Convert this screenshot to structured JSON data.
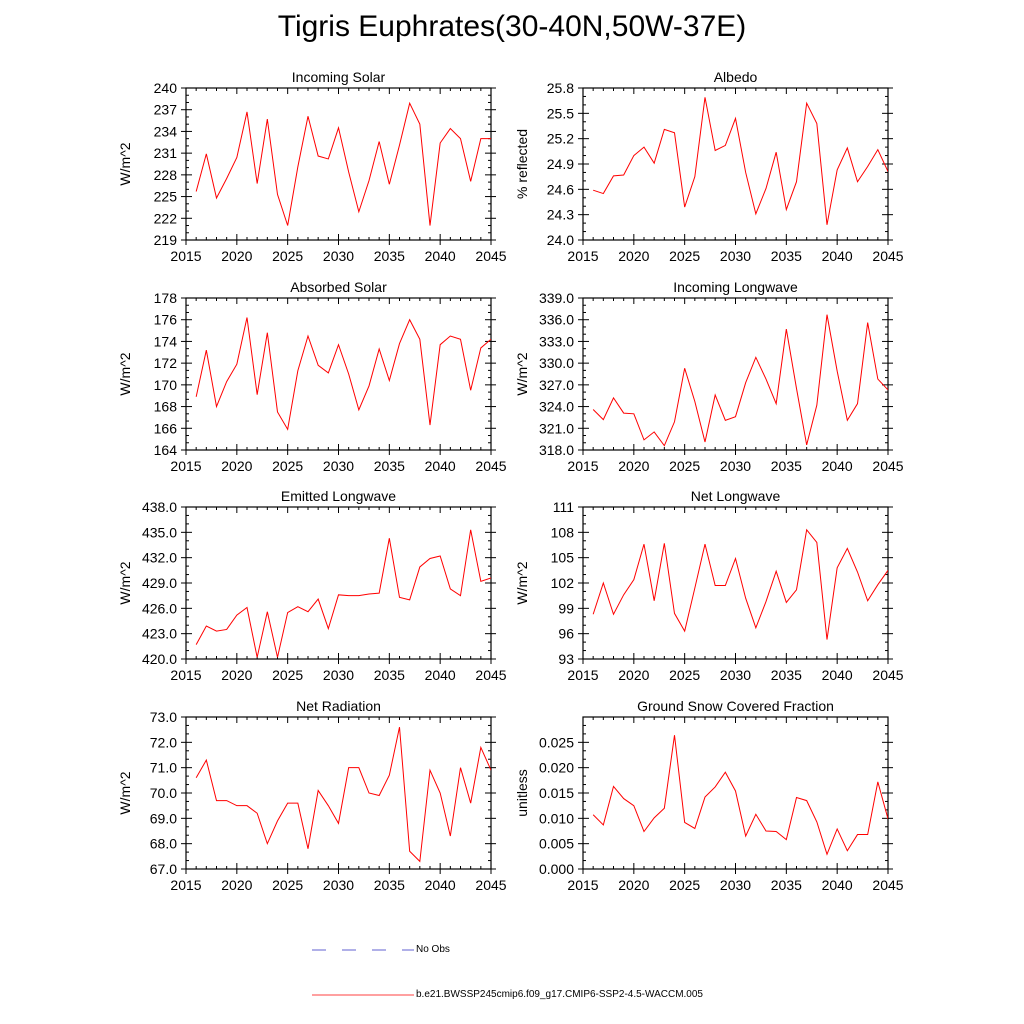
{
  "figure_title": "Tigris Euphrates(30-40N,50W-37E)",
  "legend": [
    {
      "label": "No Obs",
      "color": "#6060d0",
      "dash": true
    },
    {
      "label": "b.e21.BWSSP245cmip6.f09_g17.CMIP6-SSP2-4.5-WACCM.005",
      "color": "#ff4040",
      "dash": false
    }
  ],
  "chart_data": [
    {
      "type": "line",
      "title": "Incoming Solar",
      "ylabel": "W/m^2",
      "xlim": [
        2015,
        2045
      ],
      "xticks": [
        2015,
        2020,
        2025,
        2030,
        2035,
        2040,
        2045
      ],
      "ylim": [
        219,
        240
      ],
      "yticks": [
        219,
        222,
        225,
        228,
        231,
        234,
        237,
        240
      ],
      "ydec": 0,
      "x": [
        2016,
        2017,
        2018,
        2019,
        2020,
        2021,
        2022,
        2023,
        2024,
        2025,
        2026,
        2027,
        2028,
        2029,
        2030,
        2031,
        2032,
        2033,
        2034,
        2035,
        2036,
        2037,
        2038,
        2039,
        2040,
        2041,
        2042,
        2043,
        2044,
        2045
      ],
      "values": [
        225.7,
        230.9,
        224.8,
        227.5,
        230.4,
        236.7,
        226.8,
        235.7,
        225.3,
        221.0,
        229.1,
        236.1,
        230.6,
        230.2,
        234.5,
        228.4,
        222.9,
        227.2,
        232.6,
        226.7,
        232.1,
        237.9,
        235.0,
        221.0,
        232.4,
        234.4,
        233.0,
        227.1,
        233.0,
        233.0
      ],
      "color": "#ff0000"
    },
    {
      "type": "line",
      "title": "Albedo",
      "ylabel": "% reflected",
      "xlim": [
        2015,
        2045
      ],
      "xticks": [
        2015,
        2020,
        2025,
        2030,
        2035,
        2040,
        2045
      ],
      "ylim": [
        24.0,
        25.8
      ],
      "yticks": [
        24.0,
        24.3,
        24.6,
        24.9,
        25.2,
        25.5,
        25.8
      ],
      "ydec": 1,
      "x": [
        2016,
        2017,
        2018,
        2019,
        2020,
        2021,
        2022,
        2023,
        2024,
        2025,
        2026,
        2027,
        2028,
        2029,
        2030,
        2031,
        2032,
        2033,
        2034,
        2035,
        2036,
        2037,
        2038,
        2039,
        2040,
        2041,
        2042,
        2043,
        2044,
        2045
      ],
      "values": [
        24.59,
        24.55,
        24.76,
        24.77,
        25.0,
        25.1,
        24.91,
        25.31,
        25.27,
        24.39,
        24.75,
        25.69,
        25.06,
        25.12,
        25.44,
        24.8,
        24.31,
        24.61,
        25.04,
        24.36,
        24.69,
        25.62,
        25.38,
        24.18,
        24.83,
        25.09,
        24.69,
        24.87,
        25.07,
        24.81
      ],
      "color": "#ff0000"
    },
    {
      "type": "line",
      "title": "Absorbed Solar",
      "ylabel": "W/m^2",
      "xlim": [
        2015,
        2045
      ],
      "xticks": [
        2015,
        2020,
        2025,
        2030,
        2035,
        2040,
        2045
      ],
      "ylim": [
        164,
        178
      ],
      "yticks": [
        164,
        166,
        168,
        170,
        172,
        174,
        176,
        178
      ],
      "ydec": 0,
      "x": [
        2016,
        2017,
        2018,
        2019,
        2020,
        2021,
        2022,
        2023,
        2024,
        2025,
        2026,
        2027,
        2028,
        2029,
        2030,
        2031,
        2032,
        2033,
        2034,
        2035,
        2036,
        2037,
        2038,
        2039,
        2040,
        2041,
        2042,
        2043,
        2044,
        2045
      ],
      "values": [
        168.9,
        173.2,
        168.0,
        170.3,
        171.9,
        176.2,
        169.1,
        174.8,
        167.5,
        165.9,
        171.3,
        174.5,
        171.8,
        171.1,
        173.7,
        171.0,
        167.7,
        169.9,
        173.3,
        170.4,
        173.8,
        176.0,
        174.2,
        166.3,
        173.7,
        174.5,
        174.2,
        169.5,
        173.4,
        174.2
      ],
      "color": "#ff0000"
    },
    {
      "type": "line",
      "title": "Incoming Longwave",
      "ylabel": "W/m^2",
      "xlim": [
        2015,
        2045
      ],
      "xticks": [
        2015,
        2020,
        2025,
        2030,
        2035,
        2040,
        2045
      ],
      "ylim": [
        318.0,
        339.0
      ],
      "yticks": [
        318.0,
        321.0,
        324.0,
        327.0,
        330.0,
        333.0,
        336.0,
        339.0
      ],
      "ydec": 1,
      "x": [
        2016,
        2017,
        2018,
        2019,
        2020,
        2021,
        2022,
        2023,
        2024,
        2025,
        2026,
        2027,
        2028,
        2029,
        2030,
        2031,
        2032,
        2033,
        2034,
        2035,
        2036,
        2037,
        2038,
        2039,
        2040,
        2041,
        2042,
        2043,
        2044,
        2045
      ],
      "values": [
        323.6,
        322.2,
        325.2,
        323.1,
        323.0,
        319.4,
        320.5,
        318.6,
        321.9,
        329.3,
        324.7,
        319.1,
        325.6,
        322.1,
        322.6,
        327.3,
        330.8,
        327.8,
        324.4,
        334.7,
        326.5,
        318.7,
        324.2,
        336.7,
        328.9,
        322.1,
        324.4,
        335.6,
        327.8,
        326.3
      ],
      "color": "#ff0000"
    },
    {
      "type": "line",
      "title": "Emitted Longwave",
      "ylabel": "W/m^2",
      "xlim": [
        2015,
        2045
      ],
      "xticks": [
        2015,
        2020,
        2025,
        2030,
        2035,
        2040,
        2045
      ],
      "ylim": [
        420.0,
        438.0
      ],
      "yticks": [
        420.0,
        423.0,
        426.0,
        429.0,
        432.0,
        435.0,
        438.0
      ],
      "ydec": 1,
      "x": [
        2016,
        2017,
        2018,
        2019,
        2020,
        2021,
        2022,
        2023,
        2024,
        2025,
        2026,
        2027,
        2028,
        2029,
        2030,
        2031,
        2032,
        2033,
        2034,
        2035,
        2036,
        2037,
        2038,
        2039,
        2040,
        2041,
        2042,
        2043,
        2044,
        2045
      ],
      "values": [
        421.7,
        423.9,
        423.3,
        423.5,
        425.2,
        426.1,
        420.2,
        425.6,
        420.2,
        425.5,
        426.2,
        425.6,
        427.1,
        423.6,
        427.6,
        427.5,
        427.5,
        427.7,
        427.8,
        434.3,
        427.3,
        427.0,
        430.9,
        431.9,
        432.2,
        428.3,
        427.5,
        435.3,
        429.2,
        429.6
      ],
      "color": "#ff0000"
    },
    {
      "type": "line",
      "title": "Net Longwave",
      "ylabel": "W/m^2",
      "xlim": [
        2015,
        2045
      ],
      "xticks": [
        2015,
        2020,
        2025,
        2030,
        2035,
        2040,
        2045
      ],
      "ylim": [
        93,
        111
      ],
      "yticks": [
        93,
        96,
        99,
        102,
        105,
        108,
        111
      ],
      "ydec": 0,
      "x": [
        2016,
        2017,
        2018,
        2019,
        2020,
        2021,
        2022,
        2023,
        2024,
        2025,
        2026,
        2027,
        2028,
        2029,
        2030,
        2031,
        2032,
        2033,
        2034,
        2035,
        2036,
        2037,
        2038,
        2039,
        2040,
        2041,
        2042,
        2043,
        2044,
        2045
      ],
      "values": [
        98.3,
        102.0,
        98.3,
        100.6,
        102.4,
        106.6,
        99.9,
        106.7,
        98.4,
        96.3,
        101.4,
        106.6,
        101.7,
        101.7,
        104.9,
        100.2,
        96.7,
        99.8,
        103.4,
        99.7,
        101.2,
        108.3,
        106.8,
        95.3,
        103.8,
        106.1,
        103.3,
        99.9,
        101.8,
        103.5
      ],
      "color": "#ff0000"
    },
    {
      "type": "line",
      "title": "Net Radiation",
      "ylabel": "W/m^2",
      "xlim": [
        2015,
        2045
      ],
      "xticks": [
        2015,
        2020,
        2025,
        2030,
        2035,
        2040,
        2045
      ],
      "ylim": [
        67.0,
        73.0
      ],
      "yticks": [
        67.0,
        68.0,
        69.0,
        70.0,
        71.0,
        72.0,
        73.0
      ],
      "ydec": 1,
      "x": [
        2016,
        2017,
        2018,
        2019,
        2020,
        2021,
        2022,
        2023,
        2024,
        2025,
        2026,
        2027,
        2028,
        2029,
        2030,
        2031,
        2032,
        2033,
        2034,
        2035,
        2036,
        2037,
        2038,
        2039,
        2040,
        2041,
        2042,
        2043,
        2044,
        2045
      ],
      "values": [
        70.6,
        71.3,
        69.7,
        69.7,
        69.5,
        69.5,
        69.2,
        68.0,
        68.9,
        69.6,
        69.6,
        67.8,
        70.1,
        69.5,
        68.8,
        71.0,
        71.0,
        70.0,
        69.9,
        70.7,
        72.6,
        67.7,
        67.3,
        70.9,
        70.0,
        68.3,
        71.0,
        69.6,
        71.8,
        70.9
      ],
      "color": "#ff0000"
    },
    {
      "type": "line",
      "title": "Ground Snow Covered Fraction",
      "ylabel": "unitless",
      "xlim": [
        2015,
        2045
      ],
      "xticks": [
        2015,
        2020,
        2025,
        2030,
        2035,
        2040,
        2045
      ],
      "ylim": [
        0.0,
        0.03
      ],
      "yticks": [
        0.0,
        0.005,
        0.01,
        0.015,
        0.02,
        0.025
      ],
      "ydec": 3,
      "x": [
        2016,
        2017,
        2018,
        2019,
        2020,
        2021,
        2022,
        2023,
        2024,
        2025,
        2026,
        2027,
        2028,
        2029,
        2030,
        2031,
        2032,
        2033,
        2034,
        2035,
        2036,
        2037,
        2038,
        2039,
        2040,
        2041,
        2042,
        2043,
        2044,
        2045
      ],
      "values": [
        0.0107,
        0.0087,
        0.0163,
        0.0139,
        0.0125,
        0.0074,
        0.0101,
        0.012,
        0.0264,
        0.0092,
        0.008,
        0.0142,
        0.0162,
        0.0191,
        0.0154,
        0.0065,
        0.0108,
        0.0075,
        0.0074,
        0.0058,
        0.0141,
        0.0135,
        0.0093,
        0.0029,
        0.0079,
        0.0036,
        0.0068,
        0.0068,
        0.0172,
        0.0099
      ],
      "color": "#ff0000"
    }
  ]
}
